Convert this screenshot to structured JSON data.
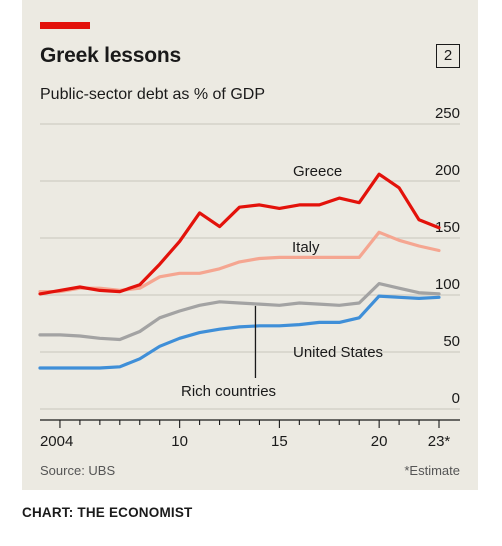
{
  "header": {
    "title": "Greek lessons",
    "chart_number": "2",
    "subtitle": "Public-sector debt as % of GDP"
  },
  "footer": {
    "source": "Source: UBS",
    "note": "*Estimate",
    "credit": "CHART: THE ECONOMIST"
  },
  "colors": {
    "greece": "#e3120b",
    "italy": "#f5a691",
    "rich_countries": "#a3a3a3",
    "united_states": "#3f8fd8",
    "accent": "#e3120b",
    "background": "#eceae2"
  },
  "chart_data": {
    "type": "line",
    "title": "Greek lessons",
    "subtitle": "Public-sector debt as % of GDP",
    "xlim": [
      2004,
      2023
    ],
    "ylim": [
      0,
      250
    ],
    "y_ticks": [
      0,
      50,
      100,
      150,
      200,
      250
    ],
    "x_ticks": [
      {
        "value": 2004,
        "label": "2004"
      },
      {
        "value": 2010,
        "label": "10"
      },
      {
        "value": 2015,
        "label": "15"
      },
      {
        "value": 2020,
        "label": "20"
      },
      {
        "value": 2023,
        "label": "23*"
      }
    ],
    "grid": "horizontal",
    "x": [
      2003,
      2004,
      2005,
      2006,
      2007,
      2008,
      2009,
      2010,
      2011,
      2012,
      2013,
      2014,
      2015,
      2016,
      2017,
      2018,
      2019,
      2020,
      2021,
      2022,
      2023
    ],
    "series": [
      {
        "name": "Greece",
        "key": "greece",
        "values": [
          101,
          104,
          107,
          104,
          103,
          109,
          127,
          147,
          172,
          160,
          177,
          179,
          176,
          179,
          179,
          185,
          181,
          206,
          194,
          166,
          159
        ]
      },
      {
        "name": "Italy",
        "key": "italy",
        "values": [
          103,
          103,
          106,
          106,
          104,
          106,
          116,
          119,
          119,
          123,
          129,
          132,
          133,
          133,
          133,
          133,
          133,
          155,
          148,
          143,
          139
        ]
      },
      {
        "name": "Rich countries",
        "key": "rich_countries",
        "values": [
          65,
          65,
          64,
          62,
          61,
          68,
          80,
          86,
          91,
          94,
          93,
          92,
          91,
          93,
          92,
          91,
          93,
          110,
          106,
          102,
          101
        ]
      },
      {
        "name": "United States",
        "key": "united_states",
        "values": [
          36,
          36,
          36,
          36,
          37,
          44,
          55,
          62,
          67,
          70,
          72,
          73,
          73,
          74,
          76,
          76,
          80,
          99,
          98,
          97,
          98
        ]
      }
    ]
  }
}
